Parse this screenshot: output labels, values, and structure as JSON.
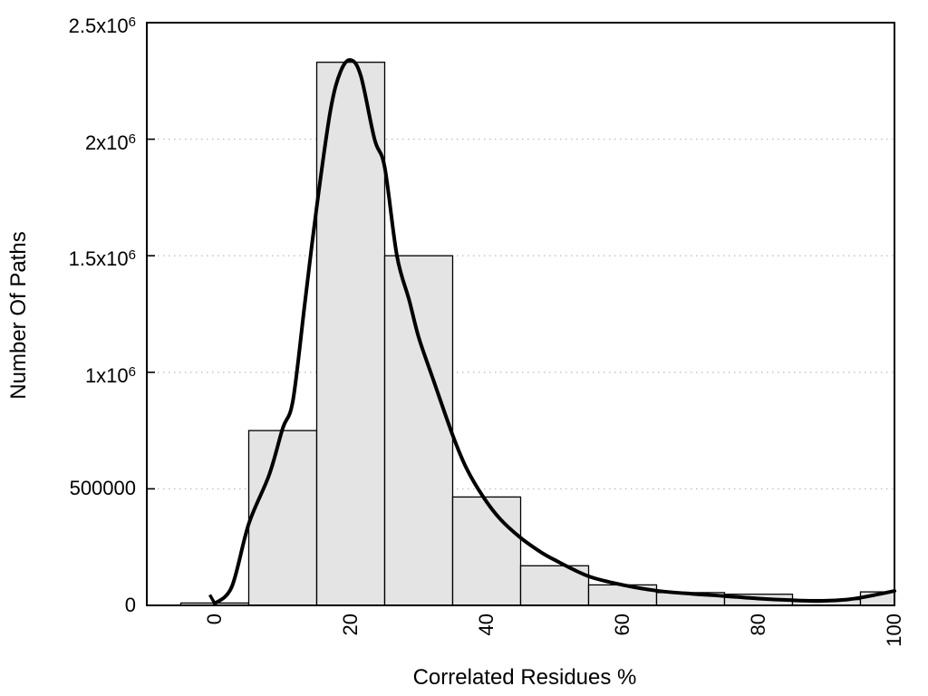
{
  "chart_data": {
    "type": "bar",
    "subtype": "histogram with smooth density curve overlay",
    "title": "",
    "xlabel": "Correlated Residues %",
    "ylabel": "Number Of Paths",
    "xlim": [
      -10,
      100
    ],
    "ylim": [
      0,
      2500000
    ],
    "grid": "dotted horizontal gridlines at labeled y ticks",
    "legend": "none",
    "xtick_rotation": 90,
    "xticks": [
      {
        "v": 0,
        "label": "0"
      },
      {
        "v": 20,
        "label": "20"
      },
      {
        "v": 40,
        "label": "40"
      },
      {
        "v": 60,
        "label": "60"
      },
      {
        "v": 80,
        "label": "80"
      },
      {
        "v": 100,
        "label": "100"
      }
    ],
    "yticks": [
      {
        "v": 0,
        "base": "0",
        "sup": ""
      },
      {
        "v": 500000,
        "base": "500000",
        "sup": ""
      },
      {
        "v": 1000000,
        "base": "1x10",
        "sup": "6"
      },
      {
        "v": 1500000,
        "base": "1.5x10",
        "sup": "6"
      },
      {
        "v": 2000000,
        "base": "2x10",
        "sup": "6"
      },
      {
        "v": 2500000,
        "base": "2.5x10",
        "sup": "6"
      }
    ],
    "bars": {
      "bin_width": 10,
      "centers": [
        0,
        10,
        20,
        30,
        40,
        50,
        60,
        70,
        80,
        90,
        100
      ],
      "values": [
        10000,
        750000,
        2330000,
        1500000,
        465000,
        170000,
        88000,
        55000,
        48000,
        25000,
        58000
      ],
      "note": "last bin (95-105) is clipped at x=100 by the plot border"
    },
    "curve": {
      "points": [
        [
          0,
          8000
        ],
        [
          2.5,
          80000
        ],
        [
          5,
          350000
        ],
        [
          8,
          560000
        ],
        [
          10,
          760000
        ],
        [
          11.5,
          880000
        ],
        [
          13.3,
          1310000
        ],
        [
          15,
          1710000
        ],
        [
          17,
          2120000
        ],
        [
          18.5,
          2290000
        ],
        [
          20,
          2340000
        ],
        [
          21.5,
          2270000
        ],
        [
          23.5,
          2000000
        ],
        [
          25,
          1880000
        ],
        [
          26.8,
          1500000
        ],
        [
          28.6,
          1310000
        ],
        [
          30,
          1150000
        ],
        [
          32,
          980000
        ],
        [
          35,
          730000
        ],
        [
          37,
          590000
        ],
        [
          39.5,
          465000
        ],
        [
          42,
          370000
        ],
        [
          45,
          290000
        ],
        [
          48,
          228000
        ],
        [
          50,
          195000
        ],
        [
          55,
          125000
        ],
        [
          60,
          88000
        ],
        [
          65,
          63000
        ],
        [
          70,
          50000
        ],
        [
          75,
          40000
        ],
        [
          80,
          29000
        ],
        [
          85,
          22000
        ],
        [
          89,
          19000
        ],
        [
          93,
          25000
        ],
        [
          96,
          38000
        ],
        [
          100,
          62000
        ]
      ]
    },
    "colors": {
      "bar_fill": "#e4e4e4",
      "bar_edge": "#000000",
      "curve": "#000000",
      "grid": "#c0c0c0",
      "border": "#000000",
      "background": "#ffffff"
    }
  }
}
